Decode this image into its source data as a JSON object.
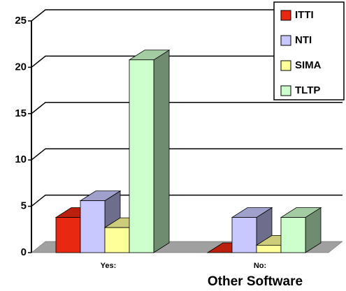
{
  "chart_data": {
    "type": "bar3d",
    "x_label": "Other Software",
    "categories": [
      "Yes:",
      "No:"
    ],
    "series": [
      {
        "name": "ITTI",
        "color": "#e82810",
        "values": [
          3.8,
          0
        ]
      },
      {
        "name": "NTI",
        "color": "#c8c8ff",
        "values": [
          5.6,
          3.8
        ]
      },
      {
        "name": "SIMA",
        "color": "#ffff99",
        "values": [
          2.7,
          0.8
        ]
      },
      {
        "name": "TLTP",
        "color": "#ccffcc",
        "values": [
          20.8,
          3.8
        ]
      }
    ],
    "ylim": [
      0,
      25
    ],
    "yticks": [
      0,
      5,
      10,
      15,
      20,
      25
    ],
    "grid": true,
    "legend": "top-right"
  }
}
